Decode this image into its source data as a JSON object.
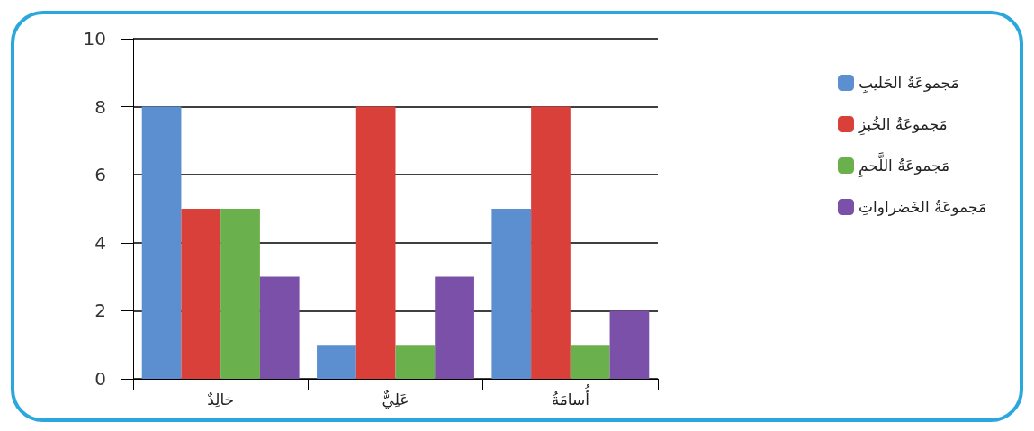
{
  "chart_data": {
    "type": "bar",
    "categories": [
      "خالِدٌ",
      "عَلِيٌّ",
      "أُسامَةُ"
    ],
    "series": [
      {
        "name": "مَجموعَةُ الحَليبِ",
        "color": "#5b8fd0",
        "values": [
          8,
          1,
          5
        ]
      },
      {
        "name": "مَجموعَةُ الخُبزِ",
        "color": "#d9403a",
        "values": [
          5,
          8,
          8
        ]
      },
      {
        "name": "مَجموعَةُ اللَّحمِ",
        "color": "#6ab04c",
        "values": [
          5,
          1,
          1
        ]
      },
      {
        "name": "مَجموعَةُ الخَضراواتِ",
        "color": "#7b50a8",
        "values": [
          3,
          3,
          2
        ]
      }
    ],
    "ylim": [
      0,
      10
    ],
    "yticks": [
      0,
      2,
      4,
      6,
      8,
      10
    ],
    "grid": "y",
    "legend": "right"
  }
}
